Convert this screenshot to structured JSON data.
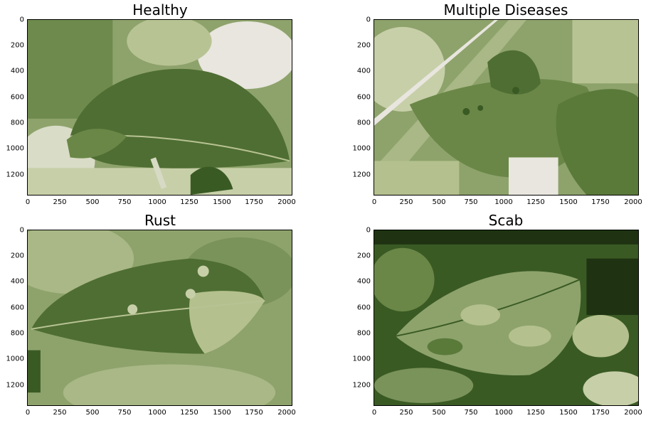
{
  "figure": {
    "panels": [
      {
        "id": "healthy",
        "title": "Healthy",
        "image": "leaf-photo-healthy",
        "x_ticks": [
          "0",
          "250",
          "500",
          "750",
          "1000",
          "1250",
          "1500",
          "1750",
          "2000"
        ],
        "y_ticks": [
          "0",
          "200",
          "400",
          "600",
          "800",
          "1000",
          "1200"
        ]
      },
      {
        "id": "multiple",
        "title": "Multiple Diseases",
        "image": "leaf-photo-multiple-diseases",
        "x_ticks": [
          "0",
          "250",
          "500",
          "750",
          "1000",
          "1250",
          "1500",
          "1750",
          "2000"
        ],
        "y_ticks": [
          "0",
          "200",
          "400",
          "600",
          "800",
          "1000",
          "1200"
        ]
      },
      {
        "id": "rust",
        "title": "Rust",
        "image": "leaf-photo-rust",
        "x_ticks": [
          "0",
          "250",
          "500",
          "750",
          "1000",
          "1250",
          "1500",
          "1750",
          "2000"
        ],
        "y_ticks": [
          "0",
          "200",
          "400",
          "600",
          "800",
          "1000",
          "1200"
        ]
      },
      {
        "id": "scab",
        "title": "Scab",
        "image": "leaf-photo-scab",
        "x_ticks": [
          "0",
          "250",
          "500",
          "750",
          "1000",
          "1250",
          "1500",
          "1750",
          "2000"
        ],
        "y_ticks": [
          "0",
          "200",
          "400",
          "600",
          "800",
          "1000",
          "1200"
        ]
      }
    ],
    "axis_x_range": [
      0,
      2048
    ],
    "axis_y_range": [
      0,
      1365
    ],
    "colors": {
      "dark": "#3a5a24",
      "mid": "#7a935a",
      "light": "#b4c08e",
      "pale": "#e8e6de"
    }
  }
}
